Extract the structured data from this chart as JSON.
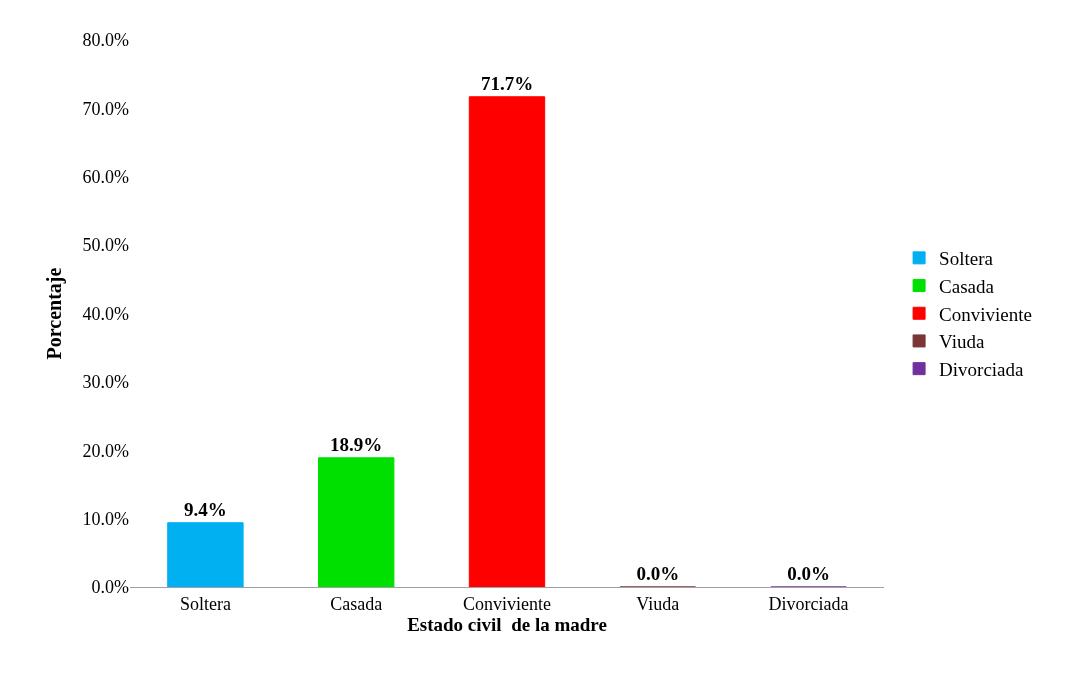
{
  "chart_data": {
    "type": "bar",
    "xlabel": "Estado civil  de la madre",
    "ylabel": "Porcentaje",
    "categories": [
      "Soltera",
      "Casada",
      "Conviviente",
      "Viuda",
      "Divorciada"
    ],
    "series": [
      {
        "name": "Soltera",
        "color": "#00b0f0",
        "values": [
          9.4,
          null,
          null,
          null,
          null
        ],
        "value_labels": [
          "9.4%",
          null,
          null,
          null,
          null
        ]
      },
      {
        "name": "Casada",
        "color": "#00e000",
        "values": [
          null,
          18.9,
          null,
          null,
          null
        ],
        "value_labels": [
          null,
          "18.9%",
          null,
          null,
          null
        ]
      },
      {
        "name": "Conviviente",
        "color": "#ff0000",
        "values": [
          null,
          null,
          71.7,
          null,
          null
        ],
        "value_labels": [
          null,
          null,
          "71.7%",
          null,
          null
        ]
      },
      {
        "name": "Viuda",
        "color": "#7b3535",
        "values": [
          null,
          null,
          null,
          0.0,
          null
        ],
        "value_labels": [
          null,
          null,
          null,
          "0.0%",
          null
        ]
      },
      {
        "name": "Divorciada",
        "color": "#7030a0",
        "values": [
          null,
          null,
          null,
          null,
          0.0
        ],
        "value_labels": [
          null,
          null,
          null,
          null,
          "0.0%"
        ]
      }
    ],
    "ylim": [
      0,
      80
    ],
    "yticks": [
      {
        "value": 0,
        "label": "0.0%"
      },
      {
        "value": 10,
        "label": "10.0%"
      },
      {
        "value": 20,
        "label": "20.0%"
      },
      {
        "value": 30,
        "label": "30.0%"
      },
      {
        "value": 40,
        "label": "40.0%"
      },
      {
        "value": 50,
        "label": "50.0%"
      },
      {
        "value": 60,
        "label": "60.0%"
      },
      {
        "value": 70,
        "label": "70.0%"
      },
      {
        "value": 80,
        "label": "80.0%"
      }
    ],
    "legend": "right"
  }
}
